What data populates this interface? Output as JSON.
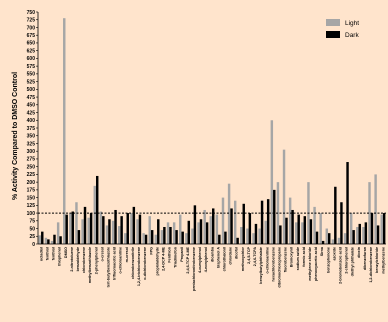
{
  "chart_data": {
    "type": "bar",
    "ylabel": "% Activity Compared to  DMSO Control",
    "xlabel": "",
    "ylim": [
      0,
      750
    ],
    "y_ticks": [
      0,
      25,
      50,
      75,
      100,
      125,
      150,
      175,
      200,
      225,
      250,
      275,
      300,
      325,
      350,
      375,
      400,
      425,
      450,
      475,
      500,
      525,
      550,
      575,
      600,
      625,
      650,
      675,
      700,
      725,
      750
    ],
    "reference_line": {
      "value": 100,
      "style": "dotted"
    },
    "legend_position": "top-right",
    "grid": false,
    "categories": [
      "octadiol",
      "fenthiol",
      "fenthiol",
      "thiophenol",
      "DMSO",
      "2-nitrotoluene",
      "benzaldehyde",
      "chlorobenzene",
      "methylbenzothiazole",
      "2-phenylphenol",
      "o-cresol",
      "tert-butylbenzothiazole",
      "trifluoroacetic acid",
      "o-chloroaniline",
      "m-cresol",
      "chlorobenzonitrile",
      "1,2,4-trichlorobenzene",
      "o-dichlorobenzene",
      "FPG",
      "propiolaldehyde",
      "2,4-DCP 4-ME",
      "Fenthion",
      "Triadimefon",
      "Propanil",
      "2,4,6-TCP 4-ME",
      "pentachloronitrobenzene",
      "4-cumylphenol",
      "4-nonylphenol",
      "dicamba",
      "bisphenol A",
      "chlorothalonil",
      "chlordane",
      "dicofol",
      "methoxychlor",
      "2,4,5-TCP",
      "2,4,6-TCPA",
      "benzylbutylphthalate",
      "o-chloroaniline",
      "hexachlorobenzene",
      "dibromochloropropane",
      "fluorobenzene",
      "Bromoxynil",
      "sodium azide",
      "formic acid",
      "methylene chloride",
      "phenoxyacetic acid",
      "Sirna",
      "benzophenone",
      "azoxide",
      "2-bromobenzoic acid",
      "2-chlorophenol",
      "diethyl phthalate",
      "dioxin",
      "dibenzofuran",
      "1,2-dichlorobenzene",
      "benzylchloride",
      "methylbenzene"
    ],
    "series": [
      {
        "name": "Light",
        "color": "#a6a6a6",
        "values": [
          28,
          20,
          10,
          70,
          730,
          100,
          135,
          80,
          85,
          188,
          105,
          60,
          75,
          58,
          35,
          100,
          80,
          35,
          90,
          30,
          45,
          70,
          70,
          95,
          35,
          50,
          70,
          110,
          90,
          95,
          150,
          195,
          140,
          55,
          50,
          35,
          50,
          75,
          400,
          200,
          305,
          150,
          70,
          70,
          200,
          120,
          100,
          50,
          15,
          20,
          35,
          100,
          55,
          55,
          200,
          225,
          95
        ]
      },
      {
        "name": "Dark",
        "color": "#000000",
        "values": [
          40,
          15,
          30,
          25,
          95,
          105,
          45,
          120,
          100,
          220,
          90,
          80,
          110,
          90,
          100,
          120,
          95,
          30,
          45,
          80,
          55,
          55,
          45,
          40,
          75,
          125,
          80,
          70,
          115,
          30,
          40,
          115,
          20,
          130,
          100,
          65,
          140,
          145,
          175,
          60,
          85,
          110,
          95,
          90,
          80,
          40,
          10,
          35,
          185,
          135,
          265,
          45,
          65,
          70,
          100,
          60,
          100
        ]
      }
    ]
  }
}
